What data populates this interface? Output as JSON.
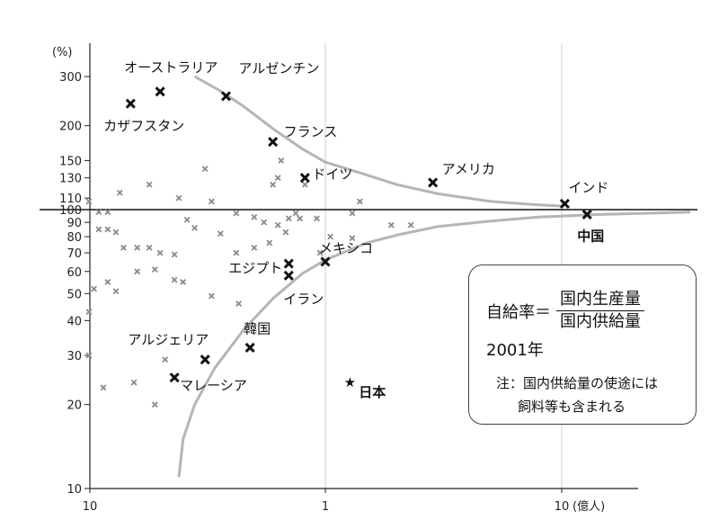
{
  "chart_data": {
    "type": "scatter",
    "x_scale": "log",
    "y_scale": "log",
    "xlim": [
      10,
      0.04
    ],
    "ylim": [
      10,
      400
    ],
    "x_unit": "(億人)",
    "y_unit": "(%)",
    "x_ticks": [
      "10",
      "1",
      "10"
    ],
    "y_ticks": [
      {
        "v": 300,
        "label": "300"
      },
      {
        "v": 200,
        "label": "200"
      },
      {
        "v": 150,
        "label": "150"
      },
      {
        "v": 130,
        "label": "130"
      },
      {
        "v": 110,
        "label": "110"
      },
      {
        "v": 100,
        "label": "100"
      },
      {
        "v": 90,
        "label": "90"
      },
      {
        "v": 80,
        "label": "80"
      },
      {
        "v": 70,
        "label": "70"
      },
      {
        "v": 60,
        "label": "60"
      },
      {
        "v": 50,
        "label": "50"
      },
      {
        "v": 40,
        "label": "40"
      },
      {
        "v": 30,
        "label": "30"
      },
      {
        "v": 20,
        "label": "20"
      },
      {
        "v": 10,
        "label": "10"
      }
    ],
    "reference_line_y": 100,
    "grid": "vertical lines at 1 and 10",
    "labeled_points": [
      {
        "name": "オーストラリア",
        "x": 0.2,
        "y": 265
      },
      {
        "name": "カザフスタン",
        "x": 0.15,
        "y": 240
      },
      {
        "name": "アルゼンチン",
        "x": 0.38,
        "y": 255
      },
      {
        "name": "フランス",
        "x": 0.6,
        "y": 175
      },
      {
        "name": "ドイツ",
        "x": 0.82,
        "y": 130
      },
      {
        "name": "アメリカ",
        "x": 2.85,
        "y": 125
      },
      {
        "name": "インド",
        "x": 10.3,
        "y": 105
      },
      {
        "name": "中国",
        "x": 12.8,
        "y": 96
      },
      {
        "name": "メキシコ",
        "x": 1.0,
        "y": 65
      },
      {
        "name": "エジプト",
        "x": 0.7,
        "y": 64
      },
      {
        "name": "イラン",
        "x": 0.7,
        "y": 58
      },
      {
        "name": "韓国",
        "x": 0.48,
        "y": 32
      },
      {
        "name": "アルジェリア",
        "x": 0.31,
        "y": 29
      },
      {
        "name": "マレーシア",
        "x": 0.23,
        "y": 25
      },
      {
        "name": "日本",
        "x": 1.27,
        "y": 24
      }
    ],
    "other_points": [
      [
        0.1,
        107
      ],
      [
        0.11,
        98
      ],
      [
        0.12,
        98
      ],
      [
        0.135,
        115
      ],
      [
        0.18,
        123
      ],
      [
        0.24,
        110
      ],
      [
        0.26,
        92
      ],
      [
        0.31,
        140
      ],
      [
        0.33,
        107
      ],
      [
        0.42,
        97
      ],
      [
        0.5,
        94
      ],
      [
        0.55,
        90
      ],
      [
        0.6,
        123
      ],
      [
        0.63,
        130
      ],
      [
        0.65,
        150
      ],
      [
        0.75,
        97
      ],
      [
        0.78,
        93
      ],
      [
        0.82,
        123
      ],
      [
        0.92,
        93
      ],
      [
        1.05,
        80
      ],
      [
        1.3,
        97
      ],
      [
        1.4,
        107
      ],
      [
        0.11,
        85
      ],
      [
        0.12,
        85
      ],
      [
        0.13,
        83
      ],
      [
        0.14,
        73
      ],
      [
        0.16,
        73
      ],
      [
        0.18,
        73
      ],
      [
        0.2,
        70
      ],
      [
        0.23,
        69
      ],
      [
        0.28,
        86
      ],
      [
        0.36,
        82
      ],
      [
        0.42,
        70
      ],
      [
        0.5,
        73
      ],
      [
        0.58,
        76
      ],
      [
        0.63,
        88
      ],
      [
        0.68,
        83
      ],
      [
        0.7,
        93
      ],
      [
        0.95,
        70
      ],
      [
        1.3,
        79
      ],
      [
        1.9,
        88
      ],
      [
        2.3,
        88
      ],
      [
        0.105,
        52
      ],
      [
        0.12,
        55
      ],
      [
        0.13,
        51
      ],
      [
        0.16,
        60
      ],
      [
        0.19,
        61
      ],
      [
        0.23,
        56
      ],
      [
        0.25,
        55
      ],
      [
        0.33,
        49
      ],
      [
        0.43,
        46
      ],
      [
        0.1,
        43
      ],
      [
        0.1,
        30
      ],
      [
        0.115,
        23
      ],
      [
        0.155,
        24
      ],
      [
        0.19,
        20
      ],
      [
        0.21,
        29
      ]
    ],
    "curves": {
      "upper": [
        [
          0.28,
          300
        ],
        [
          0.35,
          270
        ],
        [
          0.45,
          235
        ],
        [
          0.6,
          195
        ],
        [
          0.8,
          165
        ],
        [
          1.0,
          148
        ],
        [
          1.5,
          133
        ],
        [
          2.0,
          123
        ],
        [
          3.0,
          114
        ],
        [
          5.0,
          107
        ],
        [
          8.0,
          104
        ],
        [
          10.0,
          103
        ]
      ],
      "lower": [
        [
          0.24,
          11
        ],
        [
          0.25,
          15
        ],
        [
          0.28,
          20
        ],
        [
          0.34,
          27
        ],
        [
          0.45,
          37
        ],
        [
          0.6,
          48
        ],
        [
          0.8,
          59
        ],
        [
          1.0,
          66
        ],
        [
          1.5,
          76
        ],
        [
          2.0,
          81
        ],
        [
          3.0,
          87
        ],
        [
          5.0,
          91
        ],
        [
          8.0,
          94
        ],
        [
          14.0,
          96
        ],
        [
          35.0,
          98
        ]
      ]
    }
  },
  "box": {
    "lhs": "自給率＝",
    "numerator": "国内生産量",
    "denominator": "国内供給量",
    "year": "2001年",
    "note_line1": "注：国内供給量の使途には",
    "note_line2": "飼料等も含まれる"
  }
}
